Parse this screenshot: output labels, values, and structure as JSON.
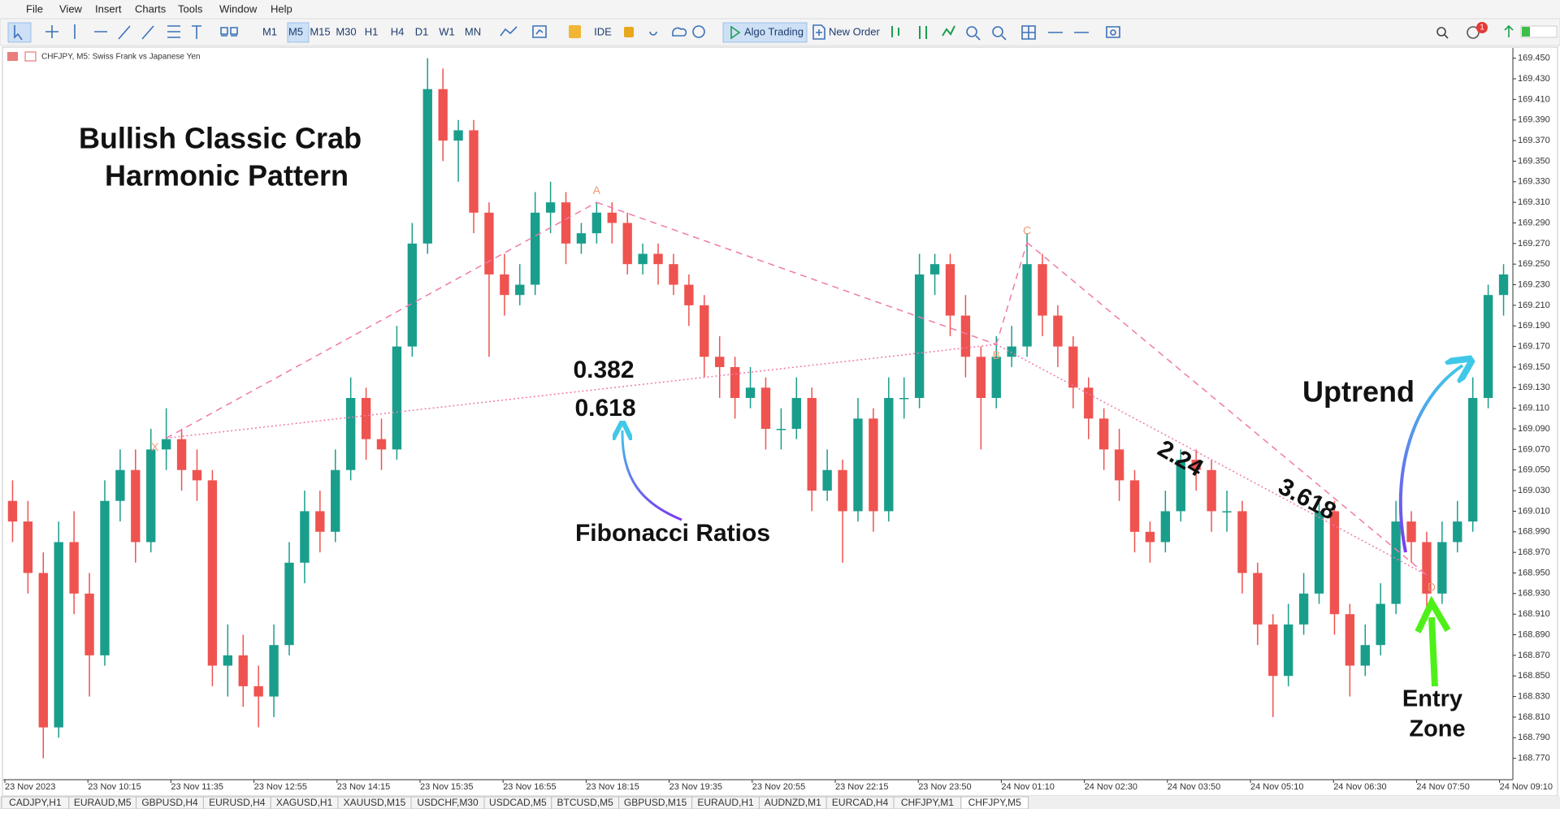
{
  "menu": [
    "File",
    "View",
    "Insert",
    "Charts",
    "Tools",
    "Window",
    "Help"
  ],
  "toolbar": {
    "periods": [
      "M1",
      "M5",
      "M15",
      "M30",
      "H1",
      "H4",
      "D1",
      "W1",
      "MN"
    ],
    "active_period": "M5",
    "ide": "IDE",
    "algo": "Algo Trading",
    "new_order": "New Order",
    "badge": "1"
  },
  "chart_data": {
    "type": "candlestick",
    "header": "CHFJPY, M5:  Swiss Frank vs Japanese Yen",
    "up_color": "#1a9e8c",
    "down_color": "#ef5350",
    "pattern_color": "#f07aa8",
    "label_color": "#f09a70",
    "ylim": [
      168.75,
      169.46
    ],
    "yticks": [
      {
        "value": 169.45,
        "label": "169.450"
      },
      {
        "value": 169.43,
        "label": "169.430"
      },
      {
        "value": 169.41,
        "label": "169.410"
      },
      {
        "value": 169.39,
        "label": "169.390"
      },
      {
        "value": 169.37,
        "label": "169.370"
      },
      {
        "value": 169.35,
        "label": "169.350"
      },
      {
        "value": 169.33,
        "label": "169.330"
      },
      {
        "value": 169.31,
        "label": "169.310"
      },
      {
        "value": 169.29,
        "label": "169.290"
      },
      {
        "value": 169.27,
        "label": "169.270"
      },
      {
        "value": 169.25,
        "label": "169.250"
      },
      {
        "value": 169.23,
        "label": "169.230"
      },
      {
        "value": 169.21,
        "label": "169.210"
      },
      {
        "value": 169.19,
        "label": "169.190"
      },
      {
        "value": 169.17,
        "label": "169.170"
      },
      {
        "value": 169.15,
        "label": "169.150"
      },
      {
        "value": 169.13,
        "label": "169.130"
      },
      {
        "value": 169.11,
        "label": "169.110"
      },
      {
        "value": 169.09,
        "label": "169.090"
      },
      {
        "value": 169.07,
        "label": "169.070"
      },
      {
        "value": 169.05,
        "label": "169.050"
      },
      {
        "value": 169.03,
        "label": "169.030"
      },
      {
        "value": 169.01,
        "label": "169.010"
      },
      {
        "value": 168.99,
        "label": "168.990"
      },
      {
        "value": 168.97,
        "label": "168.970"
      },
      {
        "value": 168.95,
        "label": "168.950"
      },
      {
        "value": 168.93,
        "label": "168.930"
      },
      {
        "value": 168.91,
        "label": "168.910"
      },
      {
        "value": 168.89,
        "label": "168.890"
      },
      {
        "value": 168.87,
        "label": "168.870"
      },
      {
        "value": 168.85,
        "label": "168.850"
      },
      {
        "value": 168.83,
        "label": "168.830"
      },
      {
        "value": 168.81,
        "label": "168.810"
      },
      {
        "value": 168.79,
        "label": "168.790"
      },
      {
        "value": 168.77,
        "label": "168.770"
      }
    ],
    "x_labels": [
      "23 Nov 2023",
      "23 Nov 10:15",
      "23 Nov 11:35",
      "23 Nov 12:55",
      "23 Nov 14:15",
      "23 Nov 15:35",
      "23 Nov 16:55",
      "23 Nov 18:15",
      "23 Nov 19:35",
      "23 Nov 20:55",
      "23 Nov 22:15",
      "23 Nov 23:50",
      "24 Nov 01:10",
      "24 Nov 02:30",
      "24 Nov 03:50",
      "24 Nov 05:10",
      "24 Nov 06:30",
      "24 Nov 07:50",
      "24 Nov 09:10"
    ],
    "open": [
      169.02,
      169.0,
      168.95,
      168.8,
      168.98,
      168.93,
      168.87,
      169.02,
      169.05,
      168.98,
      169.07,
      169.08,
      169.05,
      169.04,
      168.86,
      168.87,
      168.84,
      168.83,
      168.88,
      168.96,
      169.01,
      168.99,
      169.05,
      169.12,
      169.08,
      169.07,
      169.17,
      169.27,
      169.42,
      169.37,
      169.38,
      169.3,
      169.24,
      169.22,
      169.23,
      169.3,
      169.31,
      169.27,
      169.28,
      169.3,
      169.29,
      169.25,
      169.26,
      169.25,
      169.23,
      169.21,
      169.16,
      169.15,
      169.12,
      169.13,
      169.09,
      169.09,
      169.12,
      169.03,
      169.05,
      169.01,
      169.1,
      169.01,
      169.12,
      169.12,
      169.24,
      169.25,
      169.2,
      169.16,
      169.12,
      169.16,
      169.17,
      169.25,
      169.2,
      169.17,
      169.13,
      169.1,
      169.07,
      169.04,
      168.99,
      168.98,
      169.01,
      169.06,
      169.05,
      169.01,
      169.01,
      168.95,
      168.9,
      168.85,
      168.9,
      168.93,
      169.01,
      168.91,
      168.86,
      168.88,
      168.92,
      169.0,
      168.98,
      168.93,
      168.98,
      169.0,
      169.12,
      169.22
    ],
    "high": [
      169.04,
      169.02,
      168.97,
      169.0,
      169.01,
      168.95,
      169.04,
      169.07,
      169.07,
      169.09,
      169.11,
      169.09,
      169.07,
      169.05,
      168.9,
      168.89,
      168.86,
      168.9,
      168.98,
      169.03,
      169.03,
      169.07,
      169.14,
      169.13,
      169.1,
      169.19,
      169.29,
      169.45,
      169.44,
      169.39,
      169.39,
      169.31,
      169.26,
      169.25,
      169.32,
      169.33,
      169.32,
      169.29,
      169.31,
      169.31,
      169.3,
      169.27,
      169.27,
      169.26,
      169.24,
      169.22,
      169.18,
      169.16,
      169.15,
      169.14,
      169.11,
      169.14,
      169.13,
      169.07,
      169.06,
      169.12,
      169.11,
      169.14,
      169.14,
      169.26,
      169.26,
      169.26,
      169.22,
      169.17,
      169.18,
      169.19,
      169.28,
      169.26,
      169.21,
      169.18,
      169.14,
      169.11,
      169.09,
      169.05,
      169.0,
      169.03,
      169.07,
      169.07,
      169.06,
      169.03,
      169.02,
      168.96,
      168.91,
      168.92,
      168.95,
      169.02,
      169.02,
      168.92,
      168.9,
      168.94,
      169.02,
      169.01,
      168.99,
      169.0,
      169.02,
      169.14,
      169.23,
      169.25
    ],
    "low": [
      168.98,
      168.93,
      168.77,
      168.79,
      168.91,
      168.83,
      168.86,
      169.0,
      168.96,
      168.97,
      169.05,
      169.03,
      169.02,
      168.84,
      168.83,
      168.82,
      168.8,
      168.81,
      168.87,
      168.94,
      168.97,
      168.98,
      169.04,
      169.06,
      169.05,
      169.06,
      169.16,
      169.26,
      169.35,
      169.33,
      169.28,
      169.16,
      169.2,
      169.21,
      169.22,
      169.28,
      169.25,
      169.26,
      169.27,
      169.27,
      169.24,
      169.24,
      169.23,
      169.22,
      169.19,
      169.14,
      169.12,
      169.1,
      169.11,
      169.07,
      169.07,
      169.08,
      169.01,
      169.02,
      168.96,
      169.0,
      168.99,
      169.0,
      169.1,
      169.11,
      169.22,
      169.18,
      169.14,
      169.07,
      169.11,
      169.15,
      169.16,
      169.18,
      169.15,
      169.11,
      169.08,
      169.05,
      169.02,
      168.97,
      168.96,
      168.97,
      169.0,
      169.03,
      168.99,
      168.99,
      168.93,
      168.88,
      168.81,
      168.84,
      168.89,
      168.92,
      168.89,
      168.83,
      168.85,
      168.87,
      168.91,
      168.96,
      168.91,
      168.92,
      168.97,
      168.99,
      169.11,
      169.2
    ],
    "close": [
      169.0,
      168.95,
      168.8,
      168.98,
      168.93,
      168.87,
      169.02,
      169.05,
      168.98,
      169.07,
      169.08,
      169.05,
      169.04,
      168.86,
      168.87,
      168.84,
      168.83,
      168.88,
      168.96,
      169.01,
      168.99,
      169.05,
      169.12,
      169.08,
      169.07,
      169.17,
      169.27,
      169.42,
      169.37,
      169.38,
      169.3,
      169.24,
      169.22,
      169.23,
      169.3,
      169.31,
      169.27,
      169.28,
      169.3,
      169.29,
      169.25,
      169.26,
      169.25,
      169.23,
      169.21,
      169.16,
      169.15,
      169.12,
      169.13,
      169.09,
      169.09,
      169.12,
      169.03,
      169.05,
      169.01,
      169.1,
      169.01,
      169.12,
      169.12,
      169.24,
      169.25,
      169.2,
      169.16,
      169.12,
      169.16,
      169.17,
      169.25,
      169.2,
      169.17,
      169.13,
      169.1,
      169.07,
      169.04,
      168.99,
      168.98,
      169.01,
      169.06,
      169.05,
      169.01,
      169.01,
      168.95,
      168.9,
      168.85,
      168.9,
      168.93,
      169.01,
      168.91,
      168.86,
      168.88,
      168.92,
      169.0,
      168.98,
      168.93,
      168.98,
      169.0,
      169.12,
      169.22,
      169.24
    ],
    "pattern": {
      "points": [
        {
          "label": "X",
          "bar": 10,
          "price": 169.081
        },
        {
          "label": "A",
          "bar": 38,
          "price": 169.31
        },
        {
          "label": "B",
          "bar": 64,
          "price": 169.172
        },
        {
          "label": "C",
          "bar": 66,
          "price": 169.271
        },
        {
          "label": "D",
          "bar": 92,
          "price": 168.948
        }
      ]
    },
    "annotations": {
      "title_line1": "Bullish Classic Crab",
      "title_line2": "Harmonic Pattern",
      "ratio_1": "0.382",
      "ratio_2": "0.618",
      "fib": "Fibonacci Ratios",
      "ratio_3": "2.24",
      "ratio_4": "3.618",
      "uptrend": "Uptrend",
      "entry_1": "Entry",
      "entry_2": "Zone"
    }
  },
  "tabs": [
    "CADJPY,H1",
    "EURAUD,M5",
    "GBPUSD,H4",
    "EURUSD,H4",
    "XAGUSD,H1",
    "XAUUSD,M15",
    "USDCHF,M30",
    "USDCAD,M5",
    "BTCUSD,M5",
    "GBPUSD,M15",
    "EURAUD,H1",
    "AUDNZD,M1",
    "EURCAD,H4",
    "CHFJPY,M1",
    "CHFJPY,M5"
  ]
}
